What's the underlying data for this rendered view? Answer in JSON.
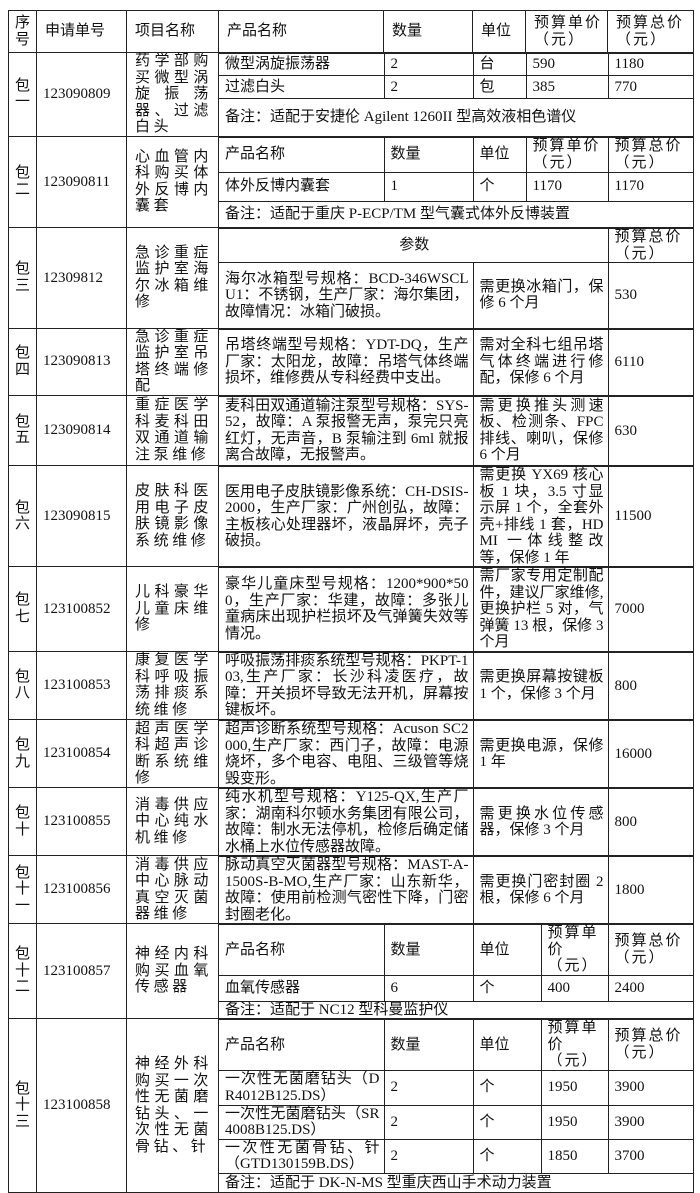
{
  "header": {
    "seq": "序号",
    "request_no": "申请单号",
    "project": "项目名称",
    "product": "产品名称",
    "qty": "数量",
    "unit": "单位",
    "unit_price": "预算单价（元）",
    "total": "预算总价（元）"
  },
  "packages": [
    {
      "seq": "包一",
      "request_no": "123090809",
      "project": "药学部购买微型涡旋振荡器、过滤白头",
      "kind": "purchase",
      "subheader": null,
      "items": [
        {
          "name": "微型涡旋振荡器",
          "qty": "2",
          "unit": "台",
          "unit_price": "590",
          "total": "1180"
        },
        {
          "name": "过滤白头",
          "qty": "2",
          "unit": "包",
          "unit_price": "385",
          "total": "770"
        }
      ],
      "note": "备注：适配于安捷伦 Agilent 1260II 型高效液相色谱仪"
    },
    {
      "seq": "包二",
      "request_no": "123090811",
      "project": "心血管内科购买体外反博内囊套",
      "kind": "purchase",
      "subheader": {
        "product": "产品名称",
        "qty": "数量",
        "unit": "单位",
        "unit_price": "预算单价（元）",
        "total": "预算总价（元）"
      },
      "items": [
        {
          "name": "体外反博内囊套",
          "qty": "1",
          "unit": "个",
          "unit_price": "1170",
          "total": "1170"
        }
      ],
      "note": "备注：适配于重庆 P-ECP/TM 型气囊式体外反博装置"
    },
    {
      "seq": "包三",
      "request_no": "12309812",
      "project": "急诊重症监护室海尔冰箱维修",
      "kind": "repair",
      "subheader": {
        "params": "参数",
        "total": "预算总价（元）"
      },
      "params": "海尔冰箱型号规格：BCD-346WSCLU1：不锈钢，生产厂家：海尔集团， 故障情况：冰箱门破损。",
      "remedy": "需更换冰箱门，保修 6 个月",
      "total": "530"
    },
    {
      "seq": "包四",
      "request_no": "123090813",
      "project": "急诊重症监护室吊塔终端修配",
      "kind": "repair",
      "params": "吊塔终端型号规格：YDT-DQ，生产厂家：太阳龙，故障：吊塔气体终端损坏，维修费从专科经费中支出。",
      "remedy": "需对全科七组吊塔气体终端进行修配，保修 6 个月",
      "total": "6110"
    },
    {
      "seq": "包五",
      "request_no": "123090814",
      "project": "重症医学科麦科田双通道输注泵维修",
      "kind": "repair",
      "params": "麦科田双通道输注泵型号规格：SYS-52，故障：A 泵报警无声，泵完只亮红灯，无声音，B 泵输注到 6ml 就报离合故障，无报警声。",
      "remedy": "需更换推头测速板、检测条、FPC 排线、喇叭，保修 6 个月",
      "total": "630"
    },
    {
      "seq": "包六",
      "request_no": "123090815",
      "project": "皮肤科医用电子皮肤镜影像系统维修",
      "kind": "repair",
      "params": "医用电子皮肤镜影像系统：CH-DSIS-2000，生产厂家：广州创弘，故障：主板核心处理器坏，液晶屏坏，壳子破损。",
      "remedy": "需更换 YX69 核心板 1 块，3.5 寸显示屏 1 个，全套外壳+排线 1 套，HDMI 一体线整改等，保修 1 年",
      "total": "11500"
    },
    {
      "seq": "包七",
      "request_no": "123100852",
      "project": "儿科豪华儿童床维修",
      "kind": "repair",
      "params": "豪华儿童床型号规格：1200*900*500，生产厂家：华建，故障：多张儿童病床出现护栏损坏及气弹簧失效等情况。",
      "remedy": "需厂家专用定制配件，建议厂家维修,更换护栏 5 对，气弹簧 13 根，保修 3 个月",
      "total": "7000"
    },
    {
      "seq": "包八",
      "request_no": "123100853",
      "project": "康复医学科呼吸振荡排痰系统维修",
      "kind": "repair",
      "params": "呼吸振荡排痰系统型号规格：PKPT-103,生产厂家：长沙科凌医疗，故障：开关损坏导致无法开机，屏幕按键板坏。",
      "remedy": "需更换屏幕按键板 1 个，保修 3 个月",
      "total": "800"
    },
    {
      "seq": "包九",
      "request_no": "123100854",
      "project": "超声医学科超声诊断系统维修",
      "kind": "repair",
      "params": "超声诊断系统型号规格：Acuson SC2000,生产厂家：西门子，故障：电源烧坏，多个电容、电阻、三级管等烧毁变形。",
      "remedy": "需更换电源，保修 1 年",
      "total": "16000"
    },
    {
      "seq": "包十",
      "request_no": "123100855",
      "project": "消毒供应中心纯水机维修",
      "kind": "repair",
      "params": "纯水机型号规格：Y125-QX,生产厂家：湖南科尔顿水务集团有限公司，故障：制水无法停机，检修后确定储水桶上水位传感器故障。",
      "remedy": "需更换水位传感器，保修 3 个月",
      "total": "800"
    },
    {
      "seq": "包十一",
      "request_no": "123100856",
      "project": "消毒供应中心脉动真空灭菌器维修",
      "kind": "repair",
      "params": "脉动真空灭菌器型号规格：MAST-A-1500S-B-MO,生产厂家：山东新华，故障：使用前检测气密性下降，门密封圈老化。",
      "remedy": "需更换门密封圈 2 根，保修 6 个月",
      "total": "1800"
    },
    {
      "seq": "包十二",
      "request_no": "123100857",
      "project": "神经内科购买血氧传感器",
      "kind": "purchase",
      "subheader": {
        "product": "产品名称",
        "qty": "数量",
        "unit": "单位",
        "unit_price": "预算单价（元）",
        "total": "预算总价（元）"
      },
      "items": [
        {
          "name": "血氧传感器",
          "qty": "6",
          "unit": "个",
          "unit_price": "400",
          "total": "2400"
        }
      ],
      "note": "备注：适配于 NC12 型科曼监护仪"
    },
    {
      "seq": "包十三",
      "request_no": "123100858",
      "project": "神经外科购买一次性无菌磨钻头、一次性无菌骨钻、针",
      "kind": "purchase",
      "subheader": {
        "product": "产品名称",
        "qty": "数量",
        "unit": "单位",
        "unit_price": "预算单价（元）",
        "total": "预算总价（元）"
      },
      "items": [
        {
          "name": "一次性无菌磨钻头（DR4012B125.DS）",
          "qty": "2",
          "unit": "个",
          "unit_price": "1950",
          "total": "3900"
        },
        {
          "name": "一次性无菌磨钻头（SR4008B125.DS）",
          "qty": "2",
          "unit": "个",
          "unit_price": "1950",
          "total": "3900"
        },
        {
          "name": "一次性无菌骨钻、针（GTD130159B.DS）",
          "qty": "2",
          "unit": "个",
          "unit_price": "1850",
          "total": "3700"
        }
      ],
      "note": "备注：适配于 DK-N-MS 型重庆西山手术动力装置"
    }
  ]
}
